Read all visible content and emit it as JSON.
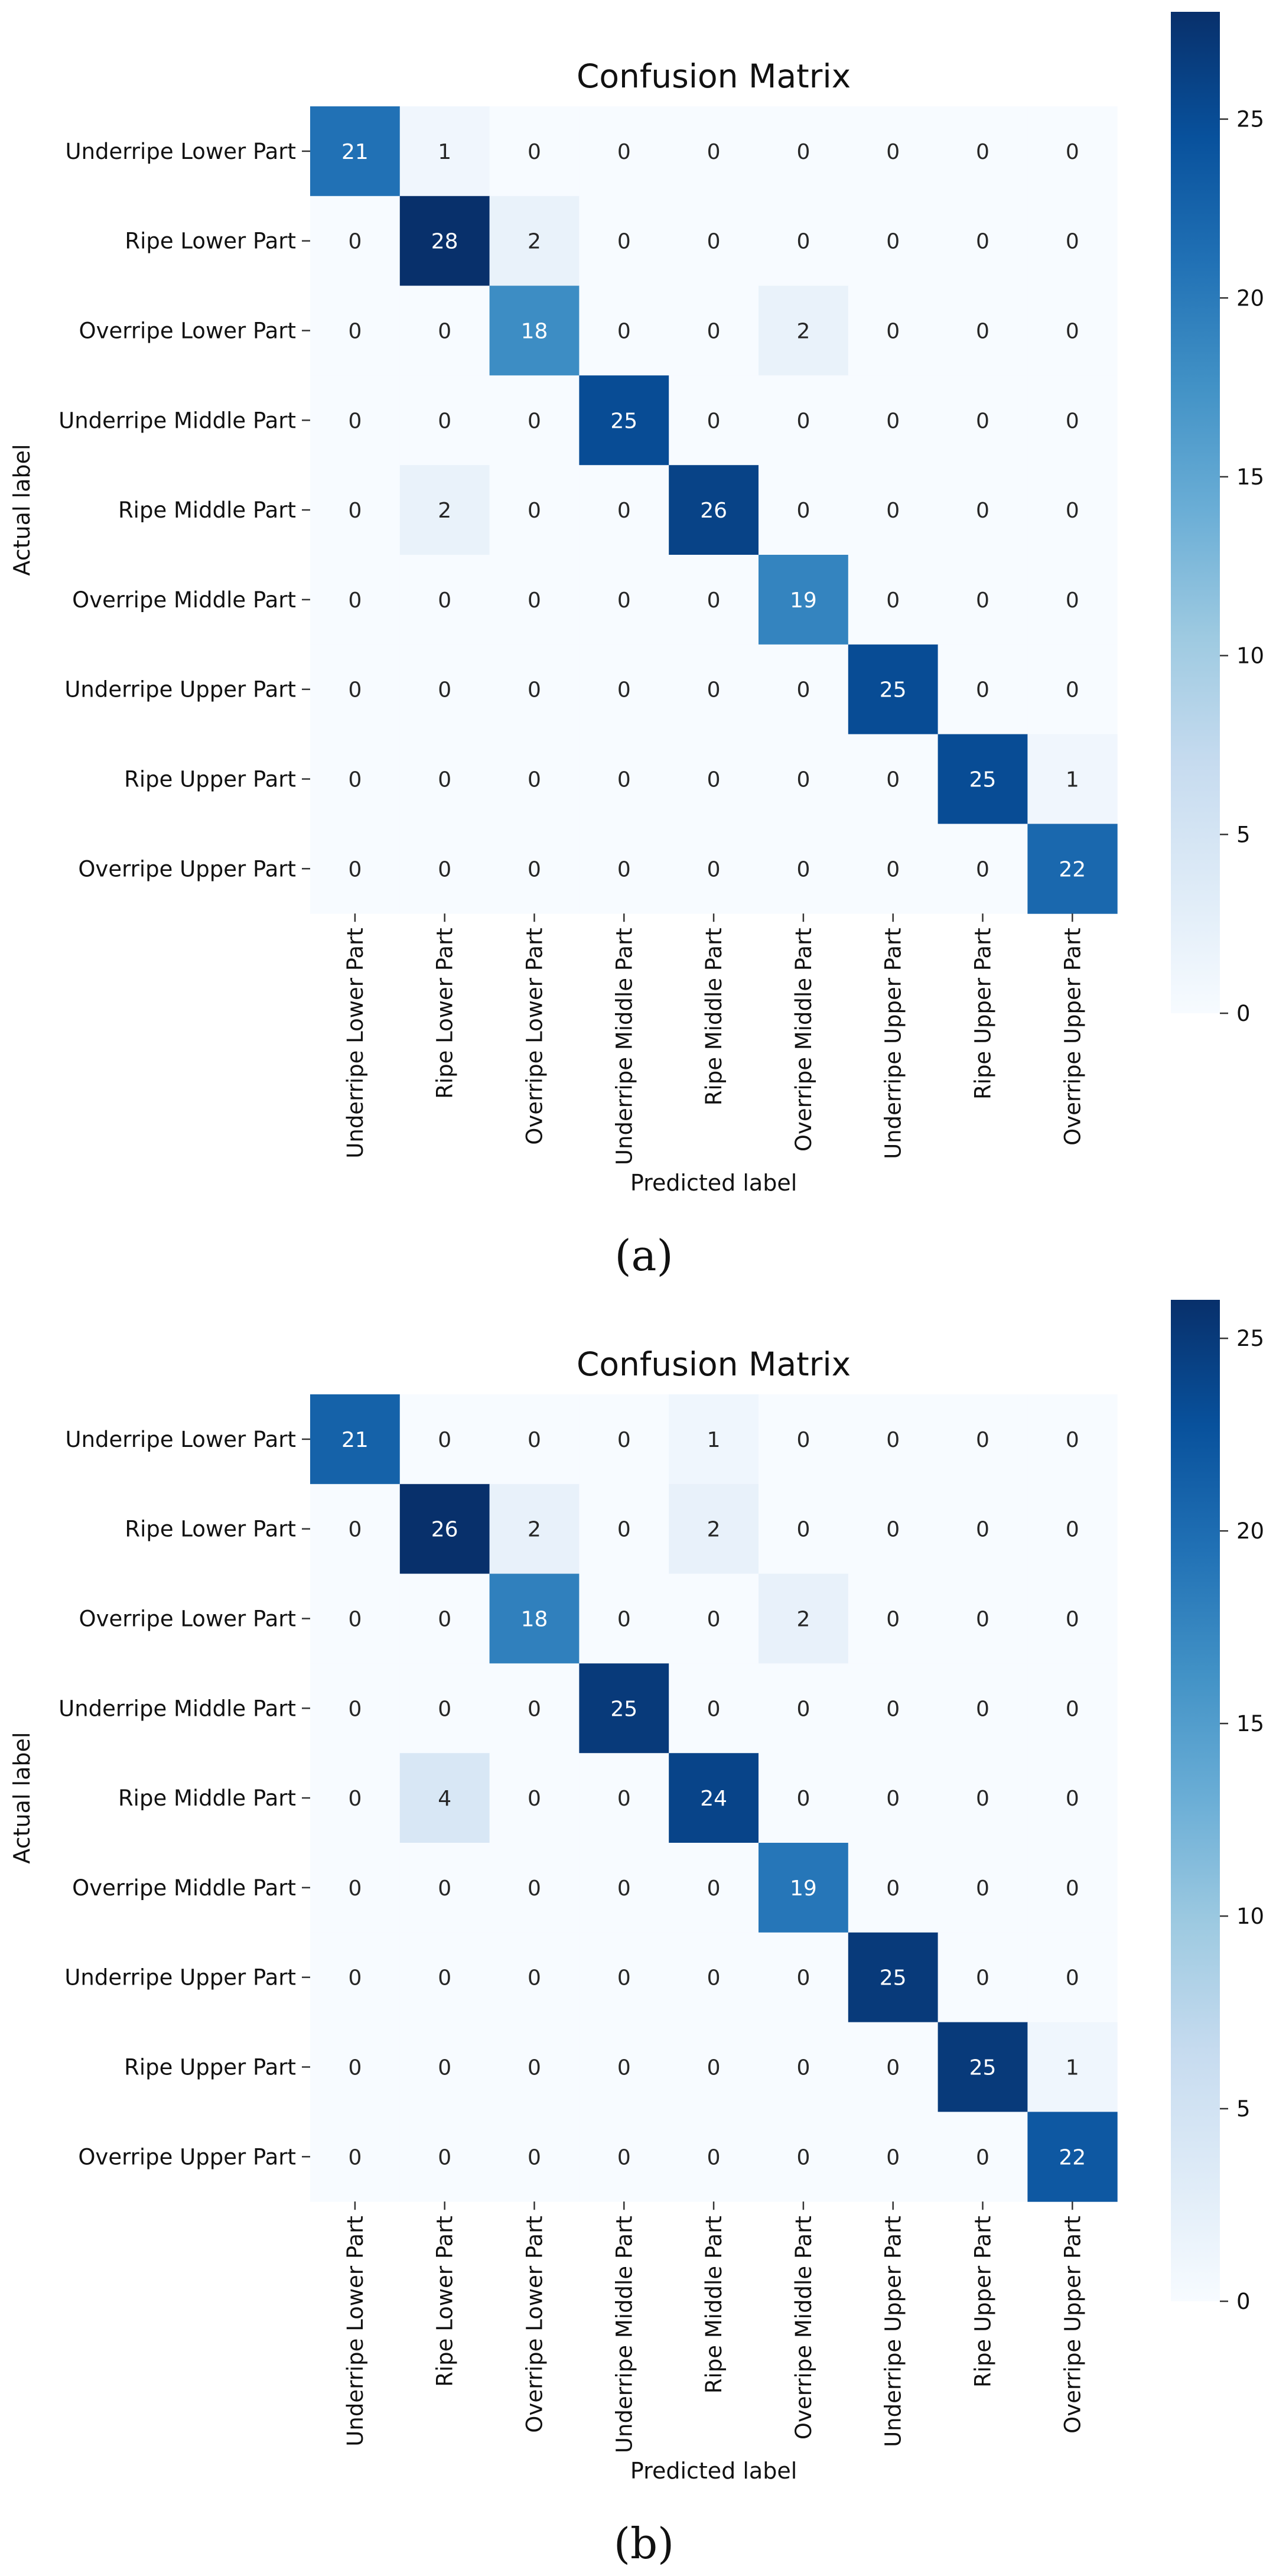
{
  "figure": {
    "captions": [
      "(a)",
      "(b)"
    ]
  },
  "chart_data": [
    {
      "type": "heatmap",
      "title": "Confusion Matrix",
      "xlabel": "Predicted label",
      "ylabel": "Actual label",
      "row_labels": [
        "Underripe Lower Part",
        "Ripe Lower Part",
        "Overripe Lower Part",
        "Underripe Middle Part",
        "Ripe Middle Part",
        "Overripe Middle Part",
        "Underripe Upper Part",
        "Ripe Upper Part",
        "Overripe Upper Part"
      ],
      "col_labels": [
        "Underripe Lower Part",
        "Ripe Lower Part",
        "Overripe Lower Part",
        "Underripe Middle Part",
        "Ripe Middle Part",
        "Overripe Middle Part",
        "Underripe Upper Part",
        "Ripe Upper Part",
        "Overripe Upper Part"
      ],
      "values": [
        [
          21,
          1,
          0,
          0,
          0,
          0,
          0,
          0,
          0
        ],
        [
          0,
          28,
          2,
          0,
          0,
          0,
          0,
          0,
          0
        ],
        [
          0,
          0,
          18,
          0,
          0,
          2,
          0,
          0,
          0
        ],
        [
          0,
          0,
          0,
          25,
          0,
          0,
          0,
          0,
          0
        ],
        [
          0,
          2,
          0,
          0,
          26,
          0,
          0,
          0,
          0
        ],
        [
          0,
          0,
          0,
          0,
          0,
          19,
          0,
          0,
          0
        ],
        [
          0,
          0,
          0,
          0,
          0,
          0,
          25,
          0,
          0
        ],
        [
          0,
          0,
          0,
          0,
          0,
          0,
          0,
          25,
          1
        ],
        [
          0,
          0,
          0,
          0,
          0,
          0,
          0,
          0,
          22
        ]
      ],
      "colormap": "Blues",
      "vmin": 0,
      "vmax": 28,
      "colorbar_ticks": [
        0,
        5,
        10,
        15,
        20,
        25
      ],
      "caption": "(a)"
    },
    {
      "type": "heatmap",
      "title": "Confusion Matrix",
      "xlabel": "Predicted label",
      "ylabel": "Actual label",
      "row_labels": [
        "Underripe Lower Part",
        "Ripe Lower Part",
        "Overripe Lower Part",
        "Underripe Middle Part",
        "Ripe Middle Part",
        "Overripe Middle Part",
        "Underripe Upper Part",
        "Ripe Upper Part",
        "Overripe Upper Part"
      ],
      "col_labels": [
        "Underripe Lower Part",
        "Ripe Lower Part",
        "Overripe Lower Part",
        "Underripe Middle Part",
        "Ripe Middle Part",
        "Overripe Middle Part",
        "Underripe Upper Part",
        "Ripe Upper Part",
        "Overripe Upper Part"
      ],
      "values": [
        [
          21,
          0,
          0,
          0,
          1,
          0,
          0,
          0,
          0
        ],
        [
          0,
          26,
          2,
          0,
          2,
          0,
          0,
          0,
          0
        ],
        [
          0,
          0,
          18,
          0,
          0,
          2,
          0,
          0,
          0
        ],
        [
          0,
          0,
          0,
          25,
          0,
          0,
          0,
          0,
          0
        ],
        [
          0,
          4,
          0,
          0,
          24,
          0,
          0,
          0,
          0
        ],
        [
          0,
          0,
          0,
          0,
          0,
          19,
          0,
          0,
          0
        ],
        [
          0,
          0,
          0,
          0,
          0,
          0,
          25,
          0,
          0
        ],
        [
          0,
          0,
          0,
          0,
          0,
          0,
          0,
          25,
          1
        ],
        [
          0,
          0,
          0,
          0,
          0,
          0,
          0,
          0,
          22
        ]
      ],
      "colormap": "Blues",
      "vmin": 0,
      "vmax": 26,
      "colorbar_ticks": [
        0,
        5,
        10,
        15,
        20,
        25
      ],
      "caption": "(b)"
    }
  ]
}
